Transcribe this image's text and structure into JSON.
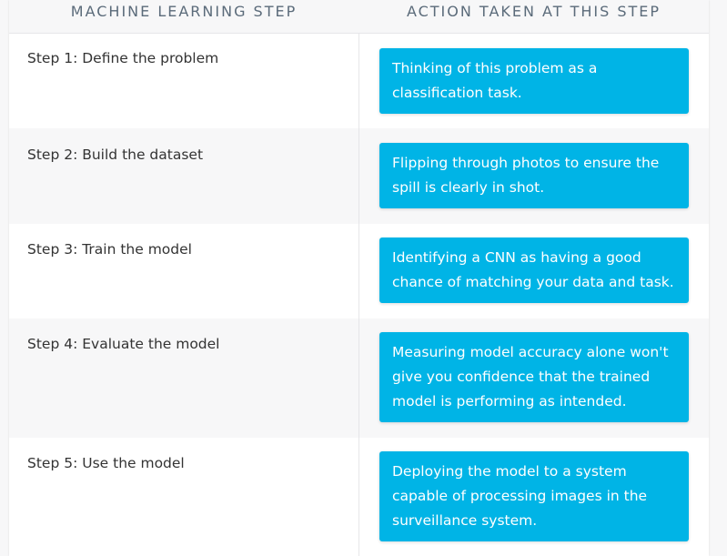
{
  "header": {
    "left_title": "MACHINE LEARNING STEP",
    "right_title": "ACTION TAKEN AT THIS STEP"
  },
  "colors": {
    "card_bg": "#00b4e6",
    "card_text": "#ffffff",
    "header_text": "#5b6b7a"
  },
  "rows": [
    {
      "step": "Step 1: Define the problem",
      "action": "Thinking of this problem as a classification task."
    },
    {
      "step": "Step 2: Build the dataset",
      "action": "Flipping through photos to ensure the spill is clearly in shot."
    },
    {
      "step": "Step 3: Train the model",
      "action": "Identifying a CNN as having a good chance of matching your data and task."
    },
    {
      "step": "Step 4: Evaluate the model",
      "action": "Measuring model accuracy alone won't give you confidence that the trained model is performing as intended."
    },
    {
      "step": "Step 5: Use the model",
      "action": "Deploying the model to a system capable of processing images in the surveillance system."
    }
  ]
}
